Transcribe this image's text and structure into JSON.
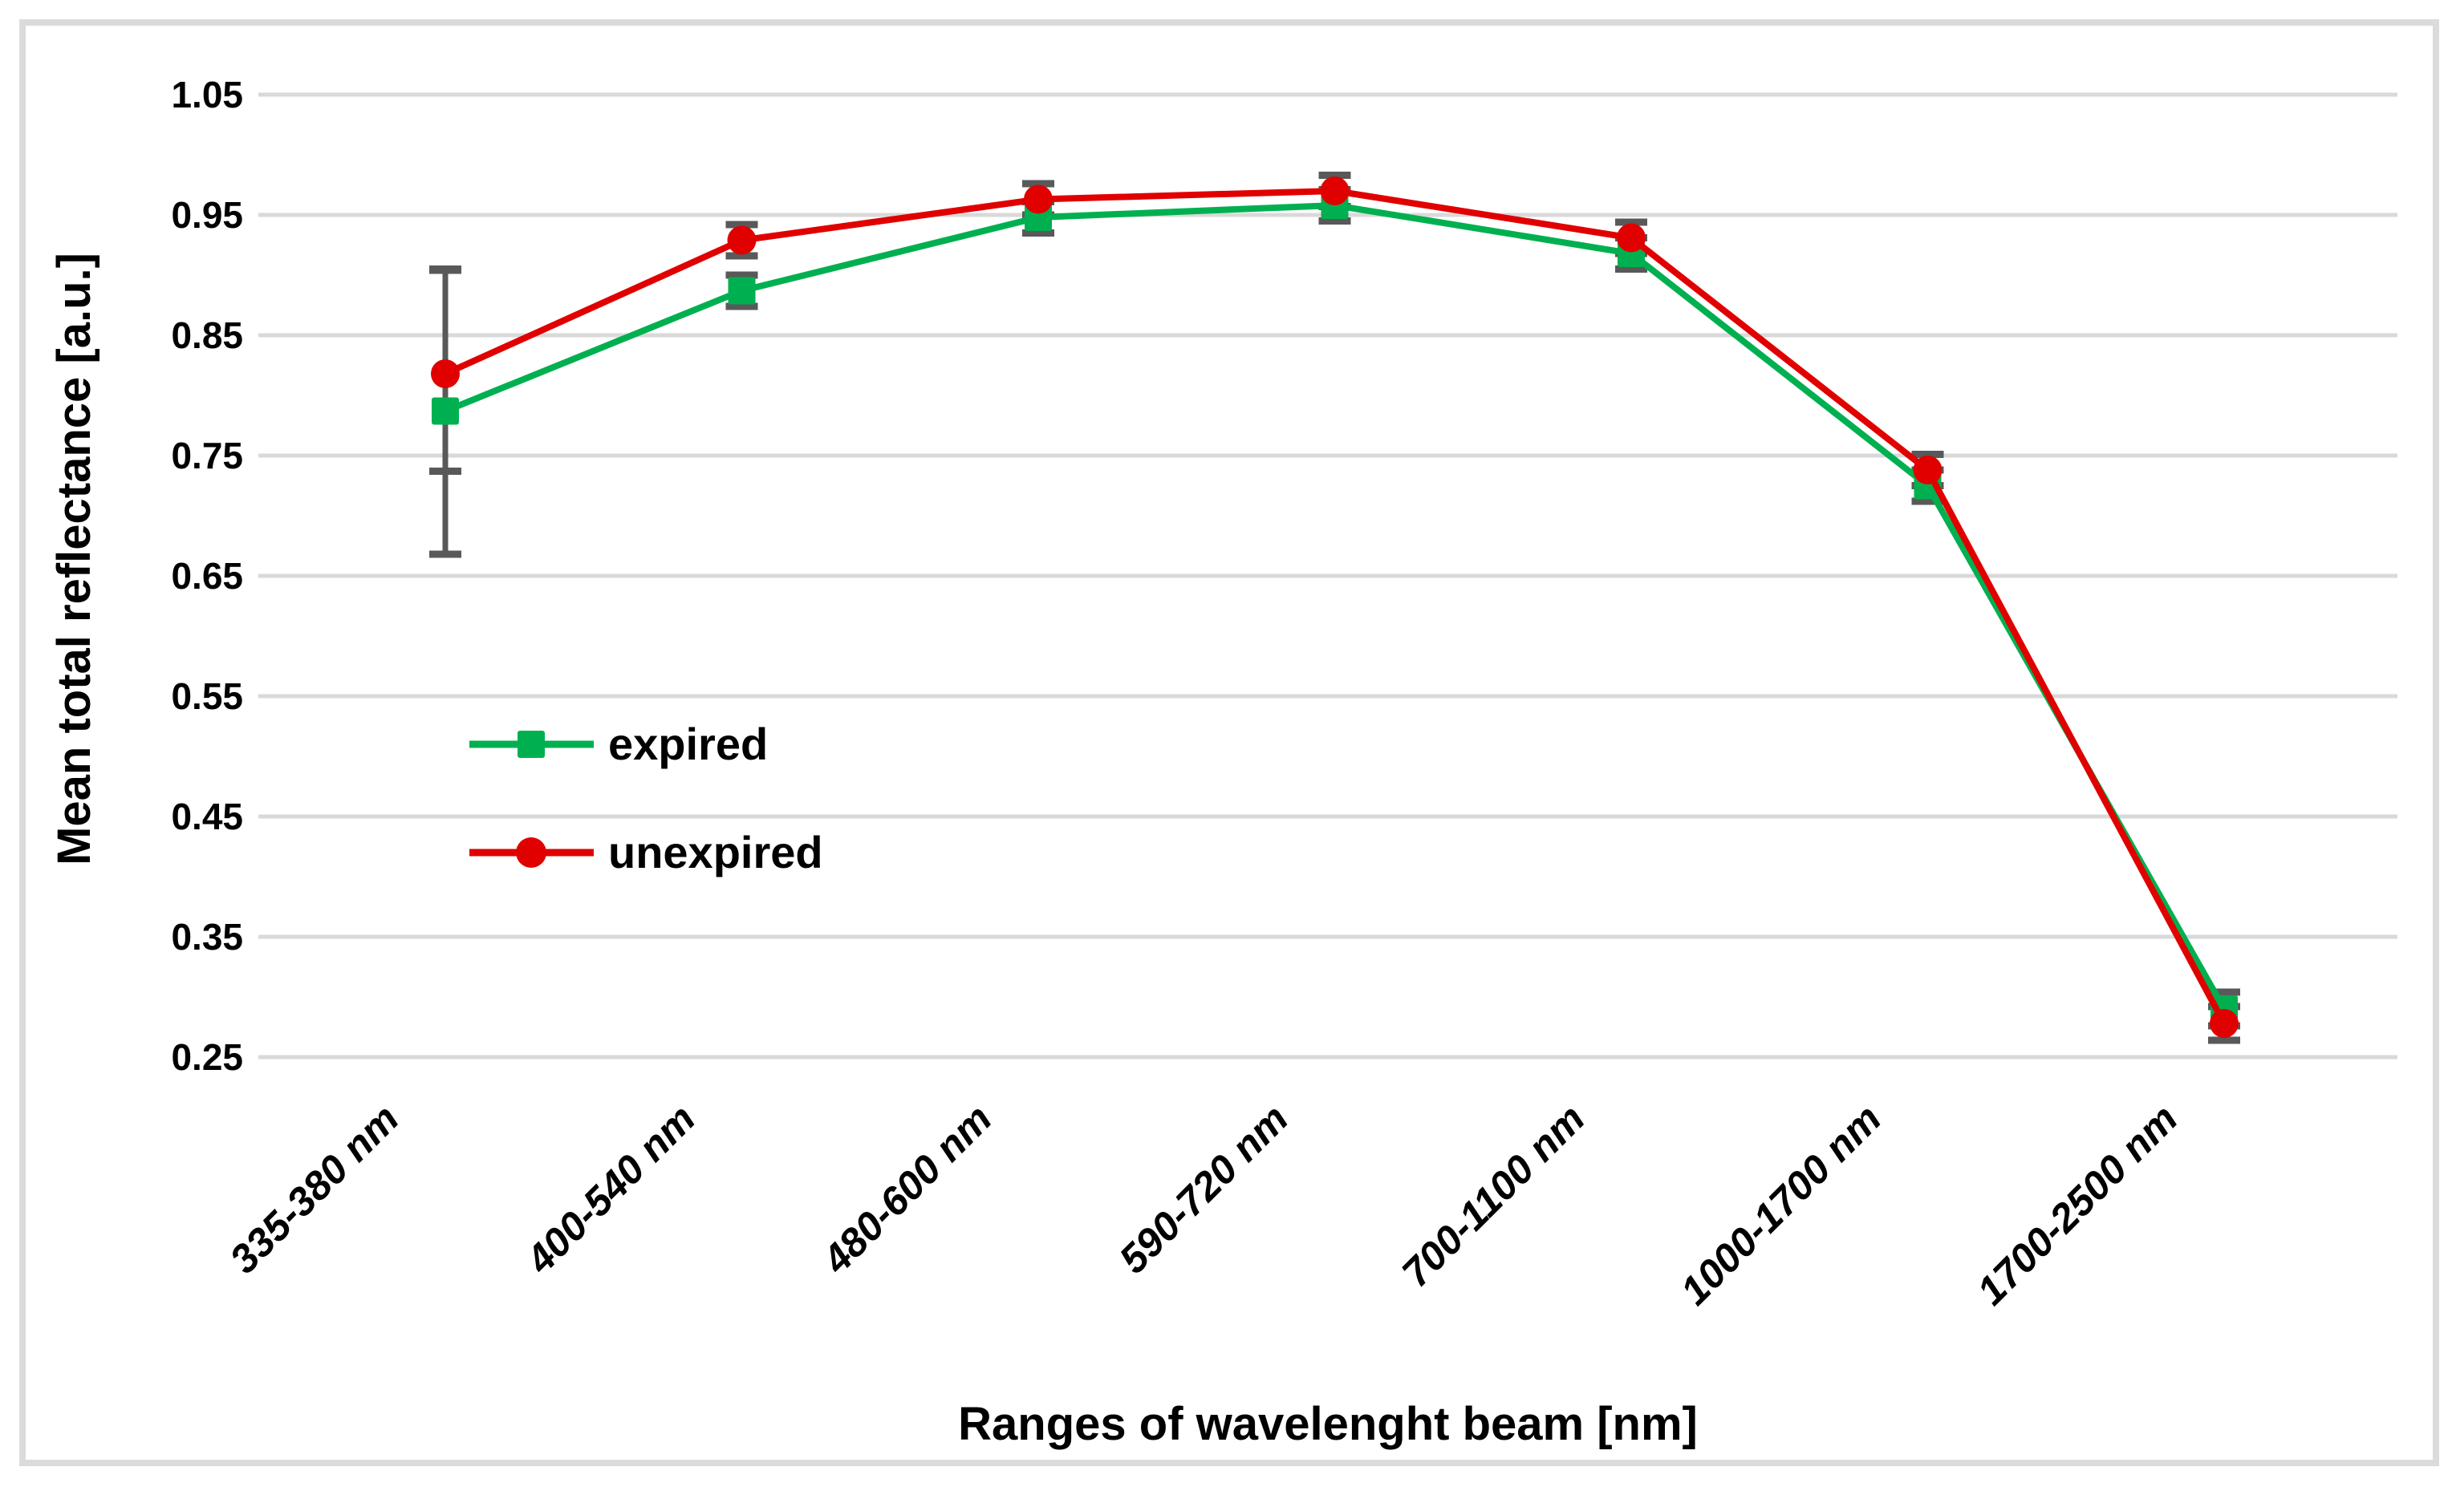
{
  "chart_data": {
    "type": "line",
    "title": "",
    "xlabel": "Ranges of wavelenght beam [nm]",
    "ylabel": "Mean total reflectance [a.u.]",
    "categories": [
      "335-380 nm",
      "400-540 nm",
      "480-600 nm",
      "590-720 nm",
      "700-1100 nm",
      "1000-1700 nm",
      "1700-2500 nm"
    ],
    "series": [
      {
        "name": "expired",
        "color": "#00b050",
        "marker": "square",
        "values": [
          0.787,
          0.887,
          0.948,
          0.958,
          0.918,
          0.725,
          0.29
        ],
        "err_plus": [
          0.118,
          0.013,
          0.013,
          0.013,
          0.013,
          0.013,
          0.014
        ],
        "err_minus": [
          0.119,
          0.013,
          0.013,
          0.013,
          0.013,
          0.013,
          0.014
        ]
      },
      {
        "name": "unexpired",
        "color": "#e00000",
        "marker": "circle",
        "values": [
          0.818,
          0.929,
          0.963,
          0.97,
          0.931,
          0.738,
          0.278
        ],
        "err_plus": [
          0.086,
          0.013,
          0.013,
          0.013,
          0.013,
          0.013,
          0.014
        ],
        "err_minus": [
          0.081,
          0.013,
          0.013,
          0.013,
          0.013,
          0.013,
          0.014
        ]
      }
    ],
    "y_ticks": [
      1.05,
      0.95,
      0.85,
      0.75,
      0.65,
      0.55,
      0.45,
      0.35,
      0.25
    ],
    "ylim": [
      0.25,
      1.05
    ],
    "grid": true,
    "legend_position": "inside-left-middle",
    "gridline_color": "#d9d9d9",
    "error_bar_color": "#595959",
    "frame_border_color": "#dbdbdb"
  }
}
